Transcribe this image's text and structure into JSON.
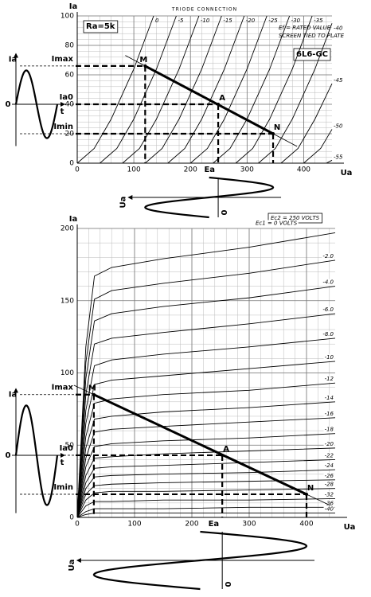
{
  "chart_data": [
    {
      "type": "line",
      "title": "TRIODE CONNECTION",
      "x_label": "Ua",
      "y_label": "Ia",
      "xlim": [
        0,
        450
      ],
      "ylim": [
        0,
        100
      ],
      "xticks": [
        0,
        100,
        200,
        300,
        400
      ],
      "yticks": [
        0,
        20,
        40,
        60,
        80,
        100
      ],
      "grid": true,
      "annotations": [
        "Ra=5k",
        "Ef = RATED VALUE",
        "SCREEN TIED TO PLATE",
        "6L6-GC"
      ],
      "series": [
        {
          "name": "0",
          "color": "#000000",
          "x": [
            0,
            30,
            60,
            100,
            135
          ],
          "values": [
            0,
            10,
            30,
            64,
            100
          ]
        },
        {
          "name": "-5",
          "color": "#000000",
          "x": [
            40,
            70,
            100,
            140,
            175
          ],
          "values": [
            0,
            10,
            30,
            64,
            100
          ]
        },
        {
          "name": "-10",
          "color": "#000000",
          "x": [
            80,
            110,
            140,
            180,
            215
          ],
          "values": [
            0,
            10,
            30,
            64,
            100
          ]
        },
        {
          "name": "-15",
          "color": "#000000",
          "x": [
            120,
            150,
            180,
            220,
            255
          ],
          "values": [
            0,
            10,
            30,
            64,
            100
          ]
        },
        {
          "name": "-20",
          "color": "#000000",
          "x": [
            160,
            190,
            220,
            260,
            295
          ],
          "values": [
            0,
            10,
            30,
            64,
            100
          ]
        },
        {
          "name": "-25",
          "color": "#000000",
          "x": [
            200,
            230,
            260,
            300,
            335
          ],
          "values": [
            0,
            10,
            30,
            64,
            100
          ]
        },
        {
          "name": "-30",
          "color": "#000000",
          "x": [
            240,
            270,
            300,
            340,
            375
          ],
          "values": [
            0,
            10,
            30,
            64,
            100
          ]
        },
        {
          "name": "-35",
          "color": "#000000",
          "x": [
            280,
            310,
            340,
            380,
            415
          ],
          "values": [
            0,
            10,
            30,
            64,
            100
          ]
        },
        {
          "name": "-40",
          "color": "#000000",
          "x": [
            320,
            350,
            380,
            420,
            450
          ],
          "values": [
            0,
            10,
            30,
            64,
            95
          ]
        },
        {
          "name": "-45",
          "color": "#000000",
          "x": [
            360,
            390,
            420,
            450
          ],
          "values": [
            0,
            10,
            30,
            54
          ]
        },
        {
          "name": "-50",
          "color": "#000000",
          "x": [
            400,
            430,
            450
          ],
          "values": [
            0,
            10,
            23
          ]
        },
        {
          "name": "-55",
          "color": "#000000",
          "x": [
            440,
            450
          ],
          "values": [
            0,
            2
          ]
        }
      ],
      "load_line": {
        "x": [
          120,
          346
        ],
        "values": [
          66,
          20
        ]
      },
      "points": [
        {
          "label": "M",
          "x": 120,
          "y": 66
        },
        {
          "label": "A",
          "x": 249,
          "y": 40
        },
        {
          "label": "N",
          "x": 346,
          "y": 20
        }
      ],
      "levels": [
        {
          "label": "Imax",
          "value": 66
        },
        {
          "label": "Ia0",
          "value": 40
        },
        {
          "label": "Imin",
          "value": 20
        }
      ],
      "ea": {
        "label": "Ea",
        "value": 249
      },
      "waveform_labels": {
        "ia": "Ia",
        "ia_zero": "0",
        "t": "t",
        "ua": "Ua",
        "ua_zero": "0"
      }
    },
    {
      "type": "line",
      "x_label": "Ua",
      "y_label": "Ia",
      "xlim": [
        0,
        450
      ],
      "ylim": [
        0,
        200
      ],
      "xticks": [
        0,
        100,
        200,
        300,
        400
      ],
      "yticks": [
        0,
        50,
        100,
        150,
        200
      ],
      "grid": true,
      "annotations": [
        "Ec2 = 250 VOLTS"
      ],
      "x": [
        0,
        15,
        30,
        60,
        150,
        300,
        450
      ],
      "series": [
        {
          "name": "Ec1 = 0 VOLTS",
          "color": "#000000",
          "values": [
            0,
            118,
            167,
            173,
            179,
            187,
            197
          ]
        },
        {
          "name": "-2.0",
          "color": "#000000",
          "values": [
            0,
            107,
            151,
            157,
            162,
            169,
            178
          ]
        },
        {
          "name": "-4.0",
          "color": "#000000",
          "values": [
            0,
            96,
            136,
            141,
            146,
            152,
            160
          ]
        },
        {
          "name": "-6.0",
          "color": "#000000",
          "values": [
            0,
            85,
            120,
            124,
            128,
            134,
            141
          ]
        },
        {
          "name": "-8.0",
          "color": "#000000",
          "values": [
            0,
            74,
            105,
            109,
            113,
            118,
            124
          ]
        },
        {
          "name": "-10",
          "color": "#000000",
          "values": [
            0,
            65,
            92,
            95,
            98,
            103,
            108
          ]
        },
        {
          "name": "-12",
          "color": "#000000",
          "values": [
            0,
            56,
            79,
            82,
            85,
            88,
            93
          ]
        },
        {
          "name": "-14",
          "color": "#000000",
          "values": [
            0,
            48,
            68,
            70,
            73,
            76,
            80
          ]
        },
        {
          "name": "-16",
          "color": "#000000",
          "values": [
            0,
            41,
            59,
            61,
            63,
            66,
            69
          ]
        },
        {
          "name": "-18",
          "color": "#000000",
          "values": [
            0,
            35,
            49,
            51,
            53,
            55,
            58
          ]
        },
        {
          "name": "-20",
          "color": "#000000",
          "values": [
            0,
            29,
            41,
            42,
            44,
            46,
            48
          ]
        },
        {
          "name": "-22",
          "color": "#000000",
          "values": [
            0,
            24,
            34,
            35,
            36,
            38,
            40
          ]
        },
        {
          "name": "-24",
          "color": "#000000",
          "values": [
            0,
            20,
            28,
            29,
            30,
            31,
            33
          ]
        },
        {
          "name": "-26",
          "color": "#000000",
          "values": [
            0,
            16,
            22,
            23,
            24,
            25,
            26
          ]
        },
        {
          "name": "-28",
          "color": "#000000",
          "values": [
            0,
            12,
            17,
            18,
            18,
            19,
            20
          ]
        },
        {
          "name": "-32",
          "color": "#000000",
          "values": [
            0,
            8,
            11,
            11,
            12,
            12,
            13
          ]
        },
        {
          "name": "-36",
          "color": "#000000",
          "values": [
            0,
            4,
            6,
            6,
            6,
            7,
            7
          ]
        },
        {
          "name": "-40",
          "color": "#000000",
          "values": [
            0,
            2,
            3,
            3,
            3,
            3,
            3
          ]
        }
      ],
      "load_line": {
        "x": [
          29,
          400
        ],
        "values": [
          85,
          16
        ]
      },
      "points": [
        {
          "label": "M",
          "x": 29,
          "y": 85
        },
        {
          "label": "A",
          "x": 253,
          "y": 43
        },
        {
          "label": "N",
          "x": 400,
          "y": 16
        }
      ],
      "levels": [
        {
          "label": "Imax",
          "value": 85
        },
        {
          "label": "Ia0",
          "value": 43
        },
        {
          "label": "Imin",
          "value": 16
        }
      ],
      "ea": {
        "label": "Ea",
        "value": 253
      },
      "waveform_labels": {
        "ia": "Ia",
        "ia_zero": "0",
        "t": "t",
        "ua": "Ua",
        "ua_zero": "0"
      }
    }
  ]
}
